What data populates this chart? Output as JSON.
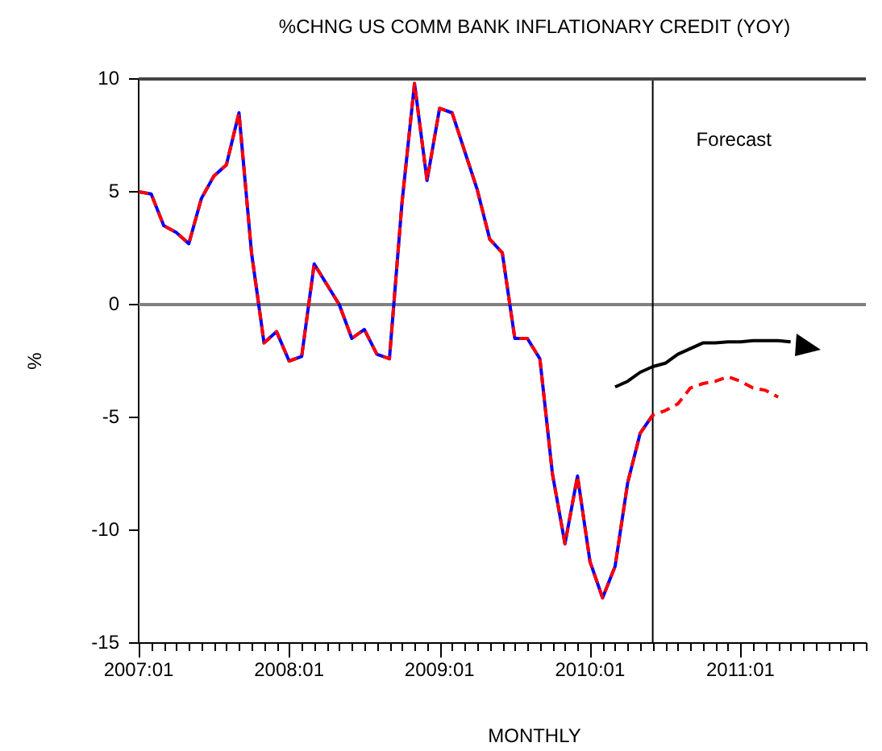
{
  "chart_data": {
    "type": "line",
    "title": "%CHNG US COMM BANK INFLATIONARY CREDIT (YOY)",
    "xlabel": "MONTHLY",
    "ylabel": "%",
    "annotations": [
      "Forecast"
    ],
    "x": [
      "2007-01",
      "2007-02",
      "2007-03",
      "2007-04",
      "2007-05",
      "2007-06",
      "2007-07",
      "2007-08",
      "2007-09",
      "2007-10",
      "2007-11",
      "2007-12",
      "2008-01",
      "2008-02",
      "2008-03",
      "2008-04",
      "2008-05",
      "2008-06",
      "2008-07",
      "2008-08",
      "2008-09",
      "2008-10",
      "2008-11",
      "2008-12",
      "2009-01",
      "2009-02",
      "2009-03",
      "2009-04",
      "2009-05",
      "2009-06",
      "2009-07",
      "2009-08",
      "2009-09",
      "2009-10",
      "2009-11",
      "2009-12",
      "2010-01",
      "2010-02",
      "2010-03",
      "2010-04",
      "2010-05",
      "2010-06",
      "2010-07",
      "2010-08",
      "2010-09",
      "2010-10",
      "2010-11",
      "2010-12",
      "2011-01",
      "2011-02",
      "2011-03",
      "2011-04",
      "2011-05"
    ],
    "series": [
      {
        "color": "#0000ff",
        "line_style": "solid",
        "values": [
          5.0,
          4.9,
          3.5,
          3.2,
          2.7,
          4.7,
          5.7,
          6.2,
          8.5,
          2.3,
          -1.7,
          -1.2,
          -2.5,
          -2.3,
          1.8,
          0.9,
          0.0,
          -1.5,
          -1.1,
          -2.2,
          -2.4,
          4.5,
          9.8,
          5.5,
          8.7,
          8.5,
          6.8,
          5.1,
          2.9,
          2.3,
          -1.5,
          -1.5,
          -2.4,
          -7.5,
          -10.6,
          -7.6,
          -11.4,
          -13.0,
          -11.6,
          -7.9,
          -5.7,
          -4.9,
          null,
          null,
          null,
          null,
          null,
          null,
          null,
          null,
          null,
          null,
          null
        ]
      },
      {
        "color": "#ff0000",
        "line_style": "dashed",
        "values": [
          5.0,
          4.9,
          3.5,
          3.2,
          2.7,
          4.7,
          5.7,
          6.2,
          8.5,
          2.3,
          -1.7,
          -1.2,
          -2.5,
          -2.3,
          1.8,
          0.9,
          0.0,
          -1.5,
          -1.1,
          -2.2,
          -2.4,
          4.5,
          9.8,
          5.5,
          8.7,
          8.5,
          6.8,
          5.1,
          2.9,
          2.3,
          -1.5,
          -1.5,
          -2.4,
          -7.5,
          -10.6,
          -7.6,
          -11.4,
          -13.0,
          -11.6,
          -7.9,
          -5.7,
          -4.9,
          -4.7,
          -4.4,
          -3.7,
          -3.5,
          -3.4,
          -3.2,
          -3.4,
          -3.7,
          -3.8,
          -4.1,
          null
        ]
      },
      {
        "color": "#000000",
        "line_style": "solid",
        "values": [
          null,
          null,
          null,
          null,
          null,
          null,
          null,
          null,
          null,
          null,
          null,
          null,
          null,
          null,
          null,
          null,
          null,
          null,
          null,
          null,
          null,
          null,
          null,
          null,
          null,
          null,
          null,
          null,
          null,
          null,
          null,
          null,
          null,
          null,
          null,
          null,
          null,
          null,
          -3.65,
          -3.4,
          -3.0,
          -2.75,
          -2.6,
          -2.2,
          -1.95,
          -1.7,
          -1.7,
          -1.65,
          -1.65,
          -1.6,
          -1.6,
          -1.6,
          -1.65
        ]
      }
    ],
    "xlim": [
      "2007-01",
      "2011-11"
    ],
    "xticks": [
      {
        "value": "2007-01",
        "label": "2007:01"
      },
      {
        "value": "2007-02",
        "label": null
      },
      {
        "value": "2007-03",
        "label": null
      },
      {
        "value": "2007-04",
        "label": null
      },
      {
        "value": "2007-05",
        "label": null
      },
      {
        "value": "2007-06",
        "label": null
      },
      {
        "value": "2007-07",
        "label": null
      },
      {
        "value": "2007-08",
        "label": null
      },
      {
        "value": "2007-09",
        "label": null
      },
      {
        "value": "2007-10",
        "label": null
      },
      {
        "value": "2007-11",
        "label": null
      },
      {
        "value": "2007-12",
        "label": null
      },
      {
        "value": "2008-01",
        "label": "2008:01"
      },
      {
        "value": "2008-02",
        "label": null
      },
      {
        "value": "2008-03",
        "label": null
      },
      {
        "value": "2008-04",
        "label": null
      },
      {
        "value": "2008-05",
        "label": null
      },
      {
        "value": "2008-06",
        "label": null
      },
      {
        "value": "2008-07",
        "label": null
      },
      {
        "value": "2008-08",
        "label": null
      },
      {
        "value": "2008-09",
        "label": null
      },
      {
        "value": "2008-10",
        "label": null
      },
      {
        "value": "2008-11",
        "label": null
      },
      {
        "value": "2008-12",
        "label": null
      },
      {
        "value": "2009-01",
        "label": "2009:01"
      },
      {
        "value": "2009-02",
        "label": null
      },
      {
        "value": "2009-03",
        "label": null
      },
      {
        "value": "2009-04",
        "label": null
      },
      {
        "value": "2009-05",
        "label": null
      },
      {
        "value": "2009-06",
        "label": null
      },
      {
        "value": "2009-07",
        "label": null
      },
      {
        "value": "2009-08",
        "label": null
      },
      {
        "value": "2009-09",
        "label": null
      },
      {
        "value": "2009-10",
        "label": null
      },
      {
        "value": "2009-11",
        "label": null
      },
      {
        "value": "2009-12",
        "label": null
      },
      {
        "value": "2010-01",
        "label": "2010:01"
      },
      {
        "value": "2010-02",
        "label": null
      },
      {
        "value": "2010-03",
        "label": null
      },
      {
        "value": "2010-04",
        "label": null
      },
      {
        "value": "2010-05",
        "label": null
      },
      {
        "value": "2010-06",
        "label": null
      },
      {
        "value": "2010-07",
        "label": null
      },
      {
        "value": "2010-08",
        "label": null
      },
      {
        "value": "2010-09",
        "label": null
      },
      {
        "value": "2010-10",
        "label": null
      },
      {
        "value": "2010-11",
        "label": null
      },
      {
        "value": "2010-12",
        "label": null
      },
      {
        "value": "2011-01",
        "label": "2011:01"
      },
      {
        "value": "2011-02",
        "label": null
      },
      {
        "value": "2011-03",
        "label": null
      },
      {
        "value": "2011-04",
        "label": null
      },
      {
        "value": "2011-05",
        "label": null
      },
      {
        "value": "2011-06",
        "label": null
      },
      {
        "value": "2011-07",
        "label": null
      },
      {
        "value": "2011-08",
        "label": null
      },
      {
        "value": "2011-09",
        "label": null
      },
      {
        "value": "2011-10",
        "label": null
      },
      {
        "value": "2011-11",
        "label": null
      }
    ],
    "ylim": [
      -15,
      10
    ],
    "yticks": [
      -15,
      -10,
      -5,
      0,
      5,
      10
    ],
    "ref_lines": [
      {
        "axis": "y",
        "value": 0,
        "color": "#808080"
      },
      {
        "axis": "x",
        "value": "2010-06",
        "color": "#000000"
      }
    ],
    "grid": false,
    "legend": false,
    "marker": "none"
  }
}
